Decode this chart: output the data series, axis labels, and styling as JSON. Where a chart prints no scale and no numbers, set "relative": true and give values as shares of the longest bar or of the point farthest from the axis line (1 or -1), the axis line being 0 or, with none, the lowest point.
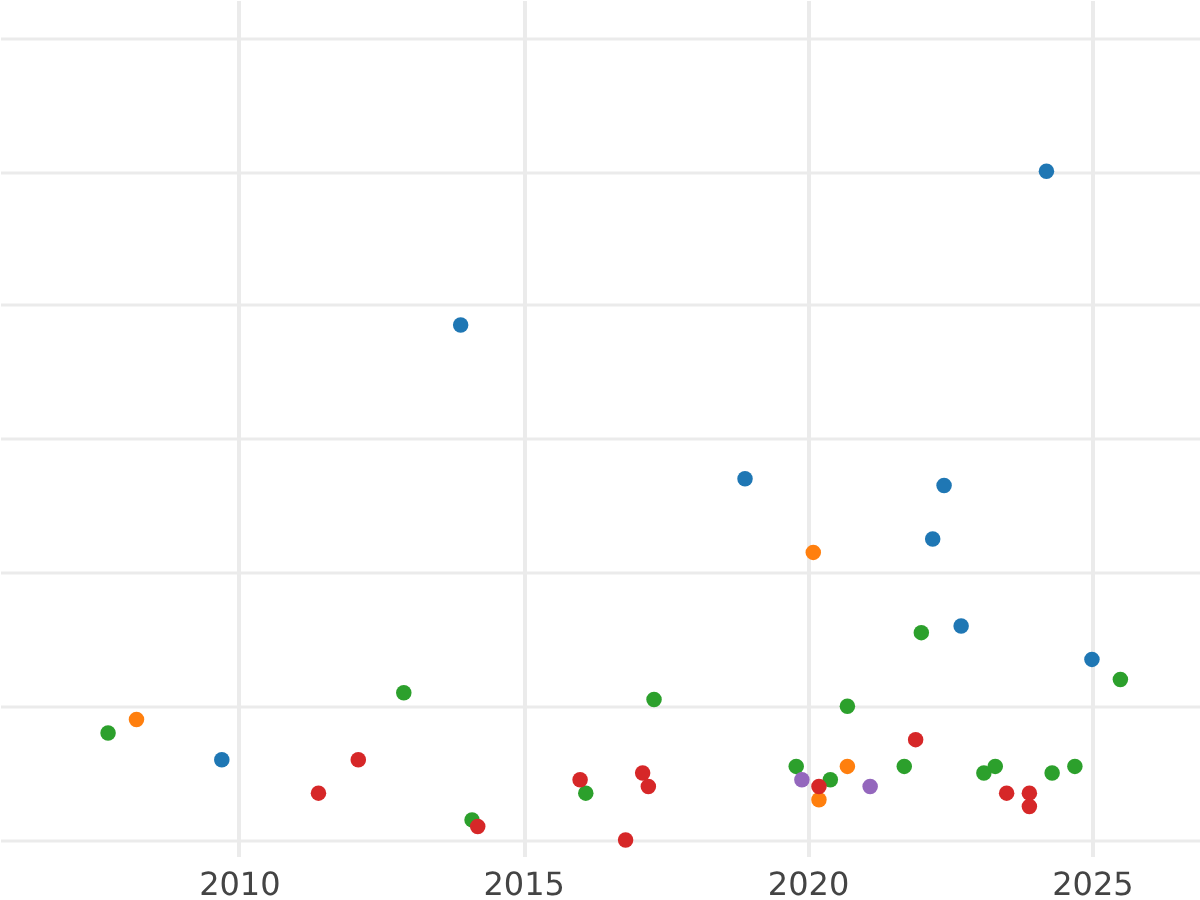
{
  "chart_data": {
    "type": "scatter",
    "relative": true,
    "marker": "circle",
    "grid": true,
    "tick_labels": "x",
    "xlim": [
      2005.8,
      2026.9
    ],
    "xticks": [
      2010,
      2015,
      2020,
      2025
    ],
    "series": [
      {
        "color": "#1f77b4",
        "x": [
          2009.7,
          2013.9,
          2018.9,
          2022.2,
          2022.4,
          2022.7,
          2024.2,
          2025.0
        ],
        "values": [
          0.12,
          0.77,
          0.54,
          0.45,
          0.53,
          0.32,
          1.0,
          0.27
        ]
      },
      {
        "color": "#ff7f0e",
        "x": [
          2008.2,
          2020.1,
          2020.2,
          2020.7
        ],
        "values": [
          0.18,
          0.43,
          0.06,
          0.11
        ]
      },
      {
        "color": "#2ca02c",
        "x": [
          2007.7,
          2012.9,
          2014.1,
          2016.1,
          2017.3,
          2019.8,
          2020.4,
          2020.7,
          2021.7,
          2022.0,
          2023.1,
          2023.3,
          2024.3,
          2024.7,
          2025.5
        ],
        "values": [
          0.16,
          0.22,
          0.03,
          0.07,
          0.21,
          0.11,
          0.09,
          0.2,
          0.11,
          0.31,
          0.1,
          0.11,
          0.1,
          0.11,
          0.24
        ]
      },
      {
        "color": "#d62728",
        "x": [
          2011.4,
          2012.1,
          2014.2,
          2016.0,
          2016.8,
          2017.1,
          2017.2,
          2020.2,
          2021.9,
          2023.5,
          2023.9,
          2023.9
        ],
        "values": [
          0.07,
          0.12,
          0.02,
          0.09,
          0.0,
          0.1,
          0.08,
          0.08,
          0.15,
          0.07,
          0.07,
          0.05
        ]
      },
      {
        "color": "#9467bd",
        "x": [
          2019.9,
          2021.1
        ],
        "values": [
          0.09,
          0.08
        ]
      }
    ]
  }
}
